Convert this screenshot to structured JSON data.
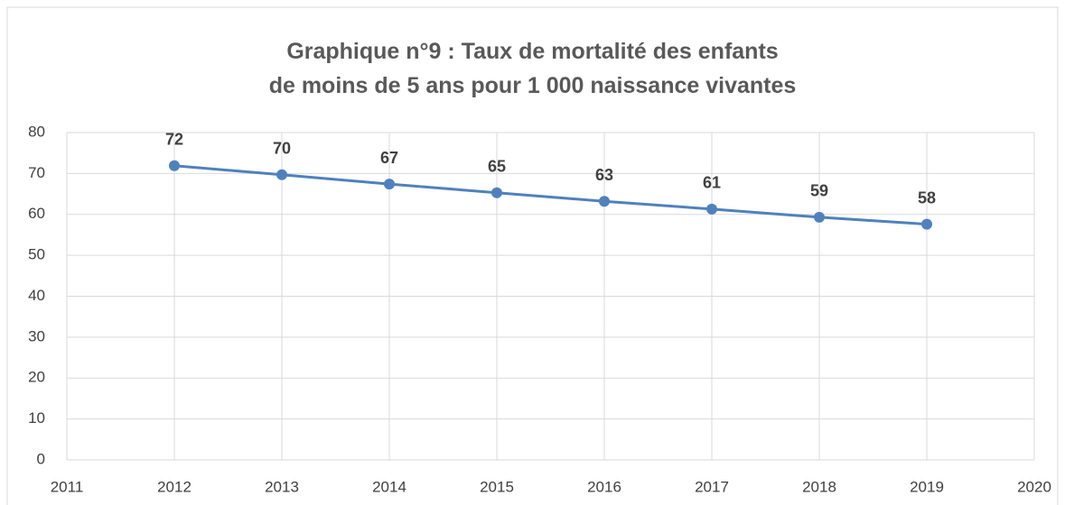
{
  "chart_data": {
    "type": "line",
    "title": "Graphique n°9 : Taux de mortalité des enfants\nde moins de 5 ans pour 1 000 naissance vivantes",
    "x": [
      2012,
      2013,
      2014,
      2015,
      2016,
      2017,
      2018,
      2019
    ],
    "series": [
      {
        "name": "Taux de mortalité",
        "color": "#4f81bd",
        "values": [
          71.9,
          69.7,
          67.4,
          65.3,
          63.2,
          61.3,
          59.3,
          57.6
        ],
        "value_labels": [
          "72",
          "70",
          "67",
          "65",
          "63",
          "61",
          "59",
          "58"
        ]
      }
    ],
    "xlim": [
      2011,
      2020
    ],
    "xticks": [
      2011,
      2012,
      2013,
      2014,
      2015,
      2016,
      2017,
      2018,
      2019,
      2020
    ],
    "ylim": [
      0,
      80
    ],
    "yticks": [
      0,
      10,
      20,
      30,
      40,
      50,
      60,
      70,
      80
    ],
    "grid": true
  }
}
